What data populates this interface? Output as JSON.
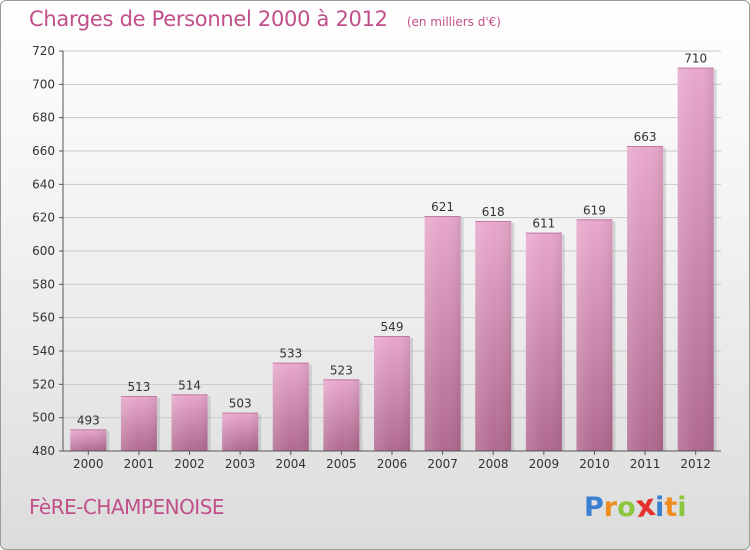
{
  "chart_data": {
    "type": "bar",
    "title": "Charges de Personnel 2000 à 2012",
    "subtitle": "(en milliers d'€)",
    "categories": [
      "2000",
      "2001",
      "2002",
      "2003",
      "2004",
      "2005",
      "2006",
      "2007",
      "2008",
      "2009",
      "2010",
      "2011",
      "2012"
    ],
    "values": [
      493,
      513,
      514,
      503,
      533,
      523,
      549,
      621,
      618,
      611,
      619,
      663,
      710
    ],
    "ylim": [
      480,
      720
    ],
    "yticks": [
      480,
      500,
      520,
      540,
      560,
      580,
      600,
      620,
      640,
      660,
      680,
      700,
      720
    ],
    "grid": true,
    "bar_color": "#d98ab8"
  },
  "footer": {
    "commune": "FèRE-CHAMPENOISE",
    "logo_letters": [
      "P",
      "r",
      "o",
      "x",
      "i",
      "t",
      "i"
    ],
    "logo_colors": [
      "#3a7fd0",
      "#f08c1e",
      "#8cc63f",
      "#e6322e",
      "#3a7fd0",
      "#f08c1e",
      "#8cc63f"
    ]
  }
}
